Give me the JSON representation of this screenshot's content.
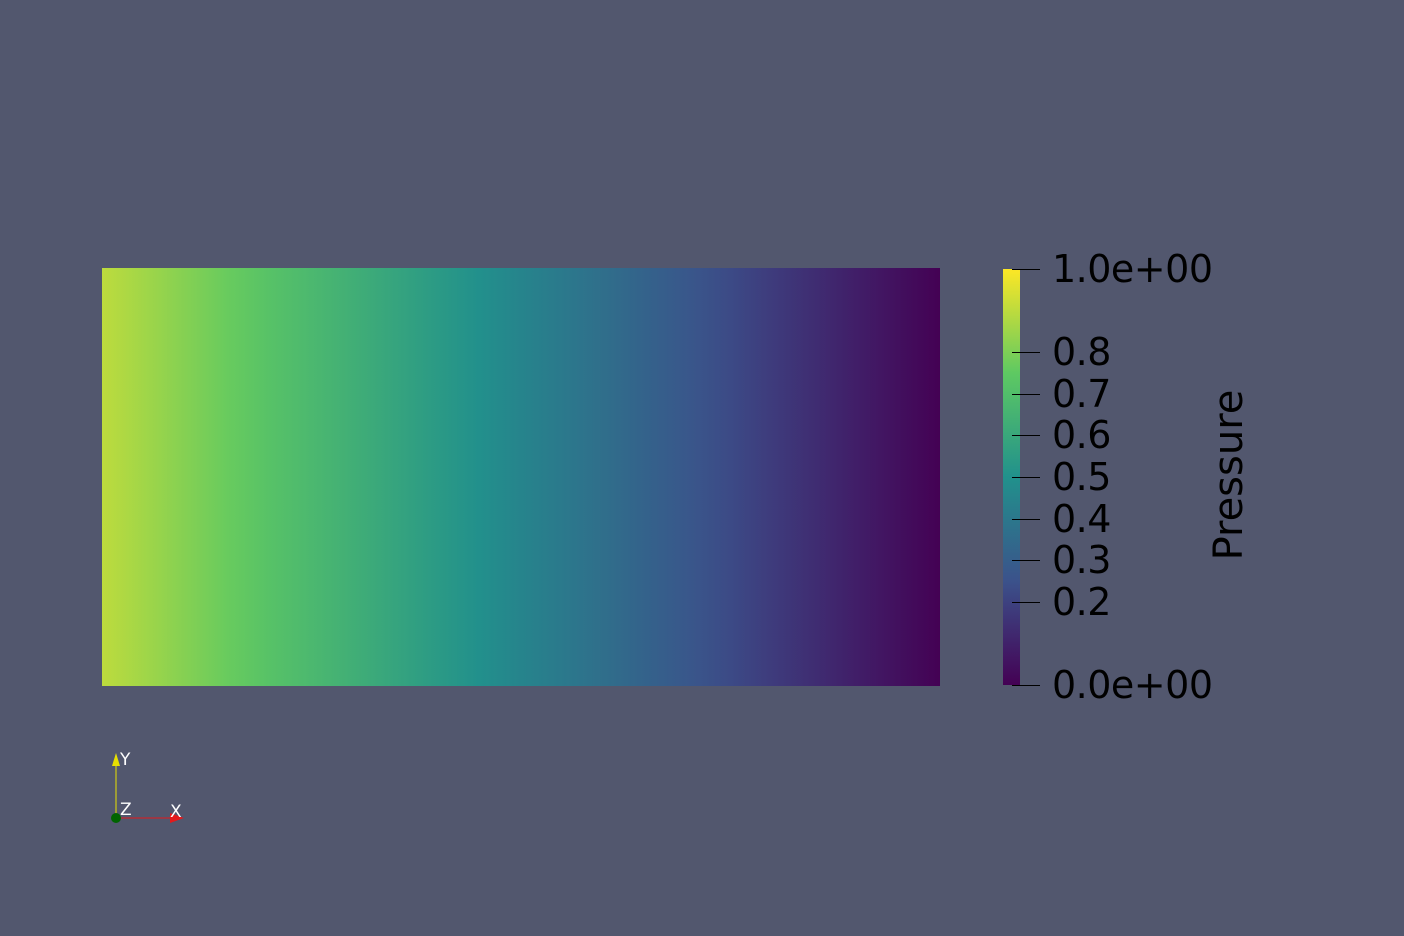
{
  "scalar_bar": {
    "title": "Pressure",
    "range": [
      0,
      1
    ],
    "colormap": "viridis",
    "ticks": [
      {
        "value": 1.0,
        "label": "1.0e+00"
      },
      {
        "value": 0.8,
        "label": "0.8"
      },
      {
        "value": 0.7,
        "label": "0.7"
      },
      {
        "value": 0.6,
        "label": "0.6"
      },
      {
        "value": 0.5,
        "label": "0.5"
      },
      {
        "value": 0.4,
        "label": "0.4"
      },
      {
        "value": 0.3,
        "label": "0.3"
      },
      {
        "value": 0.2,
        "label": "0.2"
      },
      {
        "value": 0.0,
        "label": "0.0e+00"
      }
    ]
  },
  "field": {
    "variable": "Pressure",
    "value_left": 0.9,
    "value_right": 0.0
  },
  "orientation_axes": {
    "x_label": "X",
    "y_label": "Y",
    "z_label": "Z",
    "x_color": "#e31a1c",
    "y_color": "#e8e000",
    "z_color": "#006400"
  },
  "colors": {
    "background": "#52576e",
    "viridis": [
      "#440154",
      "#3b528b",
      "#21918c",
      "#5ec962",
      "#fde725"
    ]
  }
}
